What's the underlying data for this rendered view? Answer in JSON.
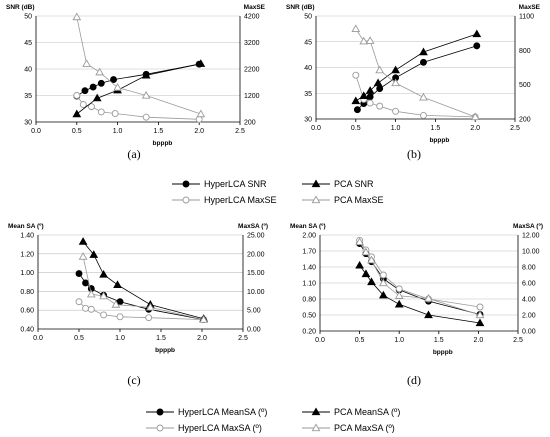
{
  "chart_data": [
    {
      "type": "line",
      "panel": "(a)",
      "xlabel": "bpppb",
      "xlim": [
        0,
        2.5
      ],
      "xticks": [
        "0.0",
        "0.5",
        "1.0",
        "1.5",
        "2.0",
        "2.5"
      ],
      "ylabel": "SNR (dB)",
      "ylim": [
        30,
        50
      ],
      "yticks": [
        "30",
        "35",
        "40",
        "45",
        "50"
      ],
      "y2label": "MaxSE",
      "y2lim": [
        200,
        4200
      ],
      "y2ticks": [
        "200",
        "1200",
        "2200",
        "3200",
        "4200"
      ],
      "grid": "horizontal",
      "series": [
        {
          "name": "HyperLCA SNR",
          "axis": "left",
          "marker": "filled-circle",
          "color": "#000000",
          "x": [
            0.5,
            0.6,
            0.7,
            0.8,
            0.95,
            1.35,
            2.0
          ],
          "y": [
            34.9,
            35.9,
            36.6,
            37.3,
            38.0,
            39.0,
            40.9
          ]
        },
        {
          "name": "HyperLCA MaxSE",
          "axis": "left",
          "marker": "hollow-circle",
          "color": "#9a9a9a",
          "x": [
            0.5,
            0.58,
            0.68,
            0.8,
            0.97,
            1.35,
            2.0
          ],
          "y": [
            35.0,
            33.3,
            32.9,
            31.9,
            31.6,
            30.9,
            30.5
          ]
        },
        {
          "name": "PCA SNR",
          "axis": "left",
          "marker": "filled-triangle",
          "color": "#000000",
          "x": [
            0.5,
            0.75,
            1.0,
            1.35,
            2.02
          ],
          "y": [
            31.5,
            34.5,
            36.0,
            38.8,
            41.0
          ]
        },
        {
          "name": "PCA MaxSE",
          "axis": "left",
          "marker": "hollow-triangle",
          "color": "#9a9a9a",
          "x": [
            0.5,
            0.62,
            0.78,
            1.0,
            1.35,
            2.02
          ],
          "y": [
            49.8,
            41.0,
            39.4,
            36.5,
            35.0,
            31.5
          ]
        }
      ]
    },
    {
      "type": "line",
      "panel": "(b)",
      "xlabel": "bpppb",
      "xlim": [
        0,
        2.5
      ],
      "xticks": [
        "0.0",
        "0.5",
        "1.0",
        "1.5",
        "2.0",
        "2.5"
      ],
      "ylabel": "SNR (dB)",
      "ylim": [
        30,
        50
      ],
      "yticks": [
        "30",
        "35",
        "40",
        "45",
        "50"
      ],
      "y2label": "MaxSE",
      "y2lim": [
        200,
        1300
      ],
      "y2ticks": [
        "200",
        "500",
        "800",
        "1100"
      ],
      "grid": "horizontal",
      "series": [
        {
          "name": "HyperLCA SNR",
          "axis": "left",
          "marker": "filled-circle",
          "color": "#000000",
          "x": [
            0.52,
            0.6,
            0.68,
            0.8,
            1.0,
            1.35,
            2.02
          ],
          "y": [
            31.8,
            33.0,
            34.3,
            35.9,
            38.0,
            41.0,
            44.2
          ]
        },
        {
          "name": "HyperLCA MaxSE",
          "axis": "left",
          "marker": "hollow-circle",
          "color": "#9a9a9a",
          "x": [
            0.5,
            0.6,
            0.68,
            0.8,
            1.0,
            1.35,
            2.0
          ],
          "y": [
            38.5,
            33.8,
            33.1,
            32.5,
            31.5,
            30.7,
            30.4
          ]
        },
        {
          "name": "PCA SNR",
          "axis": "left",
          "marker": "filled-triangle",
          "color": "#000000",
          "x": [
            0.5,
            0.6,
            0.68,
            0.78,
            1.0,
            1.35,
            2.02
          ],
          "y": [
            33.5,
            34.5,
            35.5,
            37.0,
            39.5,
            43.0,
            46.5
          ]
        },
        {
          "name": "PCA MaxSE",
          "axis": "left",
          "marker": "hollow-triangle",
          "color": "#9a9a9a",
          "x": [
            0.5,
            0.6,
            0.68,
            0.8,
            1.0,
            1.35,
            2.0
          ],
          "y": [
            47.5,
            45.1,
            45.2,
            39.5,
            37.0,
            34.2,
            30.4
          ]
        }
      ]
    },
    {
      "type": "line",
      "panel": "(c)",
      "xlabel": "bpppb",
      "xlim": [
        0,
        2.5
      ],
      "xticks": [
        "0.0",
        "0.5",
        "1.0",
        "1.5",
        "2.0",
        "2.5"
      ],
      "ylabel": "Mean SA (º)",
      "ylim": [
        0.4,
        1.4
      ],
      "yticks": [
        "0.40",
        "0.60",
        "0.80",
        "1.00",
        "1.20",
        "1.40"
      ],
      "y2label": "MaxSA (º)",
      "y2lim": [
        0,
        25
      ],
      "y2ticks": [
        "0.00",
        "5.00",
        "10.00",
        "15.00",
        "20.00",
        "25.00"
      ],
      "grid": "horizontal",
      "series": [
        {
          "name": "HyperLCA MeanSA (º)",
          "axis": "left",
          "marker": "filled-circle",
          "color": "#000000",
          "x": [
            0.5,
            0.58,
            0.65,
            0.8,
            1.0,
            1.35,
            2.02
          ],
          "y": [
            0.99,
            0.89,
            0.83,
            0.76,
            0.69,
            0.61,
            0.5
          ]
        },
        {
          "name": "HyperLCA MaxSA (º)",
          "axis": "left",
          "marker": "hollow-circle",
          "color": "#9a9a9a",
          "x": [
            0.5,
            0.58,
            0.65,
            0.8,
            1.0,
            1.35,
            2.02
          ],
          "y": [
            0.69,
            0.62,
            0.61,
            0.55,
            0.53,
            0.52,
            0.5
          ]
        },
        {
          "name": "PCA MeanSA (º)",
          "axis": "left",
          "marker": "filled-triangle",
          "color": "#000000",
          "x": [
            0.55,
            0.68,
            0.8,
            0.97,
            1.37,
            2.02
          ],
          "y": [
            1.33,
            1.19,
            0.98,
            0.87,
            0.66,
            0.51
          ]
        },
        {
          "name": "PCA MaxSA (º)",
          "axis": "left",
          "marker": "hollow-triangle",
          "color": "#9a9a9a",
          "x": [
            0.55,
            0.65,
            0.8,
            0.95,
            1.37,
            2.02
          ],
          "y": [
            1.17,
            0.77,
            0.75,
            0.66,
            0.63,
            0.5
          ]
        }
      ]
    },
    {
      "type": "line",
      "panel": "(d)",
      "xlabel": "bpppb",
      "xlim": [
        0,
        2.5
      ],
      "xticks": [
        "0.0",
        "0.5",
        "1.0",
        "1.5",
        "2.0",
        "2.5"
      ],
      "ylabel": "Mean SA (º)",
      "ylim": [
        0.2,
        2.0
      ],
      "yticks": [
        "0.20",
        "0.50",
        "0.80",
        "1.10",
        "1.40",
        "1.70",
        "2.00"
      ],
      "y2label": "MaxSA (º)",
      "y2lim": [
        0,
        12
      ],
      "y2ticks": [
        "0.00",
        "2.00",
        "4.00",
        "6.00",
        "8.00",
        "10.00",
        "12.00"
      ],
      "grid": "horizontal",
      "series": [
        {
          "name": "HyperLCA MeanSA (º)",
          "axis": "left",
          "marker": "filled-circle",
          "color": "#000000",
          "x": [
            0.5,
            0.58,
            0.65,
            0.8,
            1.0,
            1.37,
            2.02
          ],
          "y": [
            1.84,
            1.65,
            1.5,
            1.18,
            0.97,
            0.76,
            0.51
          ]
        },
        {
          "name": "HyperLCA MaxSA (º)",
          "axis": "left",
          "marker": "hollow-circle",
          "color": "#9a9a9a",
          "x": [
            0.5,
            0.58,
            0.65,
            0.8,
            1.0,
            1.37,
            2.02
          ],
          "y": [
            1.9,
            1.72,
            1.59,
            1.25,
            0.99,
            0.8,
            0.65
          ]
        },
        {
          "name": "PCA MeanSA (º)",
          "axis": "left",
          "marker": "filled-triangle",
          "color": "#000000",
          "x": [
            0.5,
            0.58,
            0.65,
            0.8,
            1.0,
            1.37,
            2.02
          ],
          "y": [
            1.43,
            1.27,
            1.12,
            0.87,
            0.7,
            0.5,
            0.35
          ]
        },
        {
          "name": "PCA MaxSA (º)",
          "axis": "left",
          "marker": "hollow-triangle",
          "color": "#9a9a9a",
          "x": [
            0.5,
            0.58,
            0.65,
            0.8,
            1.0,
            1.37,
            2.02
          ],
          "y": [
            1.87,
            1.68,
            1.53,
            1.1,
            0.86,
            0.81,
            0.5
          ]
        }
      ]
    }
  ],
  "legends": [
    {
      "items": [
        {
          "label": "HyperLCA SNR",
          "marker": "filled-circle",
          "color": "#000000"
        },
        {
          "label": "PCA SNR",
          "marker": "filled-triangle",
          "color": "#000000"
        },
        {
          "label": "HyperLCA MaxSE",
          "marker": "hollow-circle",
          "color": "#9a9a9a"
        },
        {
          "label": "PCA MaxSE",
          "marker": "hollow-triangle",
          "color": "#9a9a9a"
        }
      ]
    },
    {
      "items": [
        {
          "label": "HyperLCA MeanSA (º)",
          "marker": "filled-circle",
          "color": "#000000"
        },
        {
          "label": "PCA MeanSA (º)",
          "marker": "filled-triangle",
          "color": "#000000"
        },
        {
          "label": "HyperLCA MaxSA (º)",
          "marker": "hollow-circle",
          "color": "#9a9a9a"
        },
        {
          "label": "PCA MaxSA (º)",
          "marker": "hollow-triangle",
          "color": "#9a9a9a"
        }
      ]
    }
  ]
}
